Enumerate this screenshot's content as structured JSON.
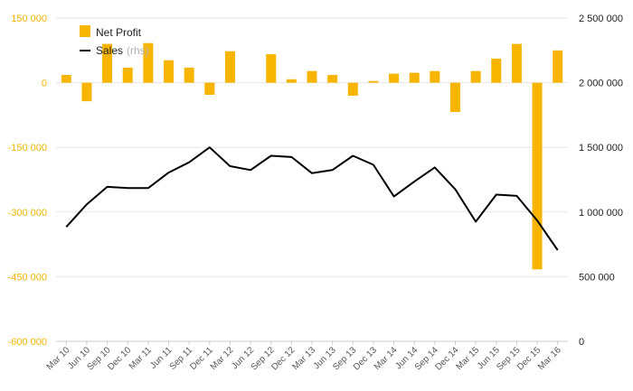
{
  "chart_data": {
    "type": "bar+line",
    "categories": [
      "Mar 10",
      "Jun 10",
      "Sep 10",
      "Dec 10",
      "Mar 11",
      "Jun 11",
      "Sep 11",
      "Dec 11",
      "Mar 12",
      "Jun 12",
      "Sep 12",
      "Dec 12",
      "Mar 13",
      "Jun 13",
      "Sep 13",
      "Dec 13",
      "Mar 14",
      "Jun 14",
      "Sep 14",
      "Dec 14",
      "Mar 15",
      "Jun 15",
      "Sep 15",
      "Dec 15",
      "Mar 16"
    ],
    "series": [
      {
        "name": "Net Profit",
        "type": "bar",
        "axis": "left",
        "color": "#f7b500",
        "values": [
          18000,
          -43000,
          90000,
          35000,
          92000,
          52000,
          35000,
          -28000,
          73000,
          null,
          66000,
          8000,
          27000,
          18000,
          -30000,
          4000,
          21000,
          23000,
          27000,
          -68000,
          27000,
          56000,
          90000,
          -433000,
          75000
        ]
      },
      {
        "name": "Sales",
        "name_suffix": "(rhs)",
        "type": "line",
        "axis": "right",
        "color": "#000000",
        "values": [
          885000,
          1060000,
          1195000,
          1185000,
          1185000,
          1305000,
          1385000,
          1500000,
          1355000,
          1325000,
          1435000,
          1425000,
          1300000,
          1325000,
          1435000,
          1365000,
          1120000,
          1235000,
          1345000,
          1175000,
          925000,
          1135000,
          1125000,
          935000,
          705000
        ]
      }
    ],
    "y_left": {
      "ticks": [
        150000,
        0,
        -150000,
        -300000,
        -450000,
        -600000
      ],
      "tick_labels": [
        "150 000",
        "0",
        "-150 000",
        "-300 000",
        "-450 000",
        "-600 000"
      ],
      "ylim": [
        -600000,
        150000
      ],
      "color": "#f7b500"
    },
    "y_right": {
      "ticks": [
        2500000,
        2000000,
        1500000,
        1000000,
        500000,
        0
      ],
      "tick_labels": [
        "2 500 000",
        "2 000 000",
        "1 500 000",
        "1 000 000",
        "500 000",
        "0"
      ],
      "ylim": [
        0,
        2500000
      ],
      "color": "#222222"
    },
    "grid": true,
    "legend_position": "top-left"
  }
}
